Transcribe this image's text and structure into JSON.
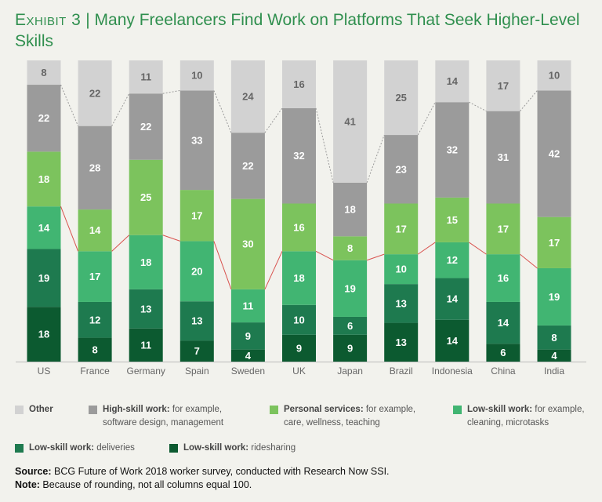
{
  "title_prefix": "Exhibit 3",
  "title_sep": "|",
  "title": "Many Freelancers Find Work on Platforms That Seek Higher-Level Skills",
  "colors": {
    "other": "#d2d2d2",
    "high": "#9b9b9b",
    "personal": "#7cc35d",
    "lowskill": "#41b572",
    "deliveries": "#1e7a4f",
    "ridesharing": "#0c5a30",
    "connector_gray": "#9a9a9a",
    "connector_red": "#d9534f"
  },
  "chart_data": {
    "type": "bar",
    "stacked": true,
    "categories": [
      "US",
      "France",
      "Germany",
      "Spain",
      "Sweden",
      "UK",
      "Japan",
      "Brazil",
      "Indonesia",
      "China",
      "India"
    ],
    "series": [
      {
        "name": "Low-skill work: ridesharing",
        "key": "ridesharing",
        "values": [
          18,
          8,
          11,
          7,
          4,
          9,
          9,
          13,
          14,
          6,
          4
        ]
      },
      {
        "name": "Low-skill work: deliveries",
        "key": "deliveries",
        "values": [
          19,
          12,
          13,
          13,
          9,
          10,
          6,
          13,
          14,
          14,
          8
        ]
      },
      {
        "name": "Low-skill work: cleaning, microtasks",
        "key": "lowskill",
        "values": [
          14,
          17,
          18,
          20,
          11,
          18,
          19,
          10,
          12,
          16,
          19
        ]
      },
      {
        "name": "Personal services: care, wellness, teaching",
        "key": "personal",
        "values": [
          18,
          14,
          25,
          17,
          30,
          16,
          8,
          17,
          15,
          17,
          17
        ]
      },
      {
        "name": "High-skill work: software design, management",
        "key": "high",
        "values": [
          22,
          28,
          22,
          33,
          22,
          32,
          18,
          23,
          32,
          31,
          42
        ]
      },
      {
        "name": "Other",
        "key": "other",
        "values": [
          8,
          22,
          11,
          10,
          24,
          16,
          41,
          25,
          14,
          17,
          10
        ]
      }
    ],
    "ylim": [
      0,
      100
    ],
    "xlabel": "",
    "ylabel": ""
  },
  "legend": [
    {
      "key": "other",
      "bold": "Other",
      "rest": "",
      "line2": ""
    },
    {
      "key": "high",
      "bold": "High-skill work:",
      "rest": " for example,",
      "line2": "software design, management"
    },
    {
      "key": "personal",
      "bold": "Personal services:",
      "rest": " for example,",
      "line2": "care, wellness, teaching"
    },
    {
      "key": "lowskill",
      "bold": "Low-skill work:",
      "rest": " for example,",
      "line2": "cleaning, microtasks"
    },
    {
      "key": "deliveries",
      "bold": "Low-skill work:",
      "rest": " deliveries",
      "line2": ""
    },
    {
      "key": "ridesharing",
      "bold": "Low-skill work:",
      "rest": " ridesharing",
      "line2": ""
    }
  ],
  "source_label": "Source:",
  "source_text": " BCG Future of Work 2018 worker survey, conducted with Research Now SSI.",
  "note_label": "Note:",
  "note_text": " Because of rounding, not all columns equal 100."
}
